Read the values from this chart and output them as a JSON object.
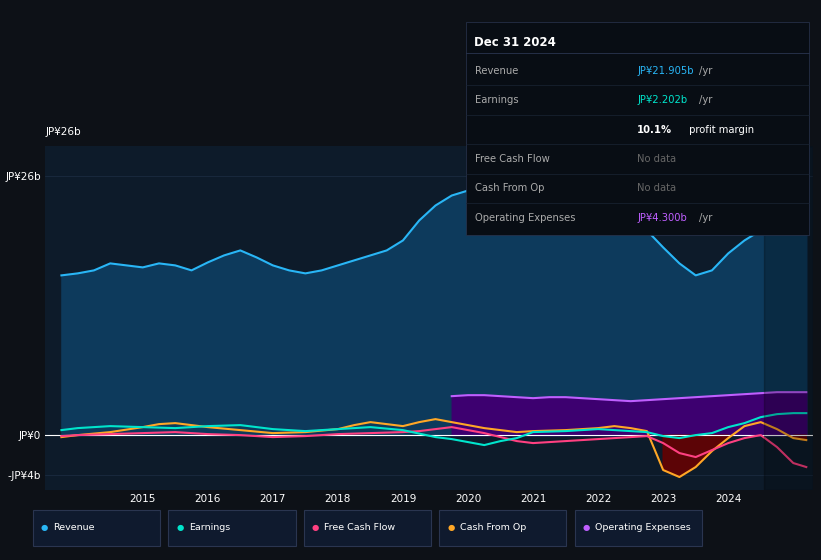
{
  "bg_color": "#0d1117",
  "plot_bg_color": "#0d1b2a",
  "grid_color": "#1e2f45",
  "title_date": "Dec 31 2024",
  "ytick_labels": [
    "JP¥26b",
    "JP¥0",
    "-JP¥4b"
  ],
  "ytick_values": [
    26,
    0,
    -4
  ],
  "ylim": [
    -5.5,
    29
  ],
  "xlim_start": 2013.5,
  "xlim_end": 2025.3,
  "xtick_labels": [
    "2015",
    "2016",
    "2017",
    "2018",
    "2019",
    "2020",
    "2021",
    "2022",
    "2023",
    "2024"
  ],
  "xtick_values": [
    2015,
    2016,
    2017,
    2018,
    2019,
    2020,
    2021,
    2022,
    2023,
    2024
  ],
  "revenue_color": "#29b6f6",
  "revenue_fill": "#0d3a5c",
  "earnings_color": "#00e5cc",
  "fcf_color": "#ff4081",
  "cashfromop_color": "#ffa726",
  "opex_color": "#bf5fff",
  "opex_fill": "#3d0070",
  "dark_red_fill": "#6b0000",
  "zero_line_color": "#ffffff",
  "shade_color": "#000000",
  "revenue_x": [
    2013.75,
    2014.0,
    2014.25,
    2014.5,
    2014.75,
    2015.0,
    2015.25,
    2015.5,
    2015.75,
    2016.0,
    2016.25,
    2016.5,
    2016.75,
    2017.0,
    2017.25,
    2017.5,
    2017.75,
    2018.0,
    2018.25,
    2018.5,
    2018.75,
    2019.0,
    2019.25,
    2019.5,
    2019.75,
    2020.0,
    2020.25,
    2020.5,
    2020.75,
    2021.0,
    2021.25,
    2021.5,
    2021.75,
    2022.0,
    2022.25,
    2022.5,
    2022.75,
    2023.0,
    2023.25,
    2023.5,
    2023.75,
    2024.0,
    2024.25,
    2024.5,
    2024.75,
    2025.0,
    2025.2
  ],
  "revenue_y": [
    16.0,
    16.2,
    16.5,
    17.2,
    17.0,
    16.8,
    17.2,
    17.0,
    16.5,
    17.3,
    18.0,
    18.5,
    17.8,
    17.0,
    16.5,
    16.2,
    16.5,
    17.0,
    17.5,
    18.0,
    18.5,
    19.5,
    21.5,
    23.0,
    24.0,
    24.5,
    24.8,
    24.2,
    23.8,
    24.5,
    24.8,
    25.2,
    24.8,
    25.0,
    24.8,
    22.5,
    20.5,
    18.8,
    17.2,
    16.0,
    16.5,
    18.2,
    19.5,
    20.5,
    21.0,
    21.5,
    21.9
  ],
  "earnings_x": [
    2013.75,
    2014.0,
    2014.5,
    2015.0,
    2015.5,
    2016.0,
    2016.5,
    2017.0,
    2017.5,
    2018.0,
    2018.5,
    2019.0,
    2019.5,
    2019.75,
    2020.0,
    2020.25,
    2020.5,
    2020.75,
    2021.0,
    2021.5,
    2022.0,
    2022.25,
    2022.5,
    2022.75,
    2023.0,
    2023.25,
    2023.5,
    2023.75,
    2024.0,
    2024.25,
    2024.5,
    2024.75,
    2025.0,
    2025.2
  ],
  "earnings_y": [
    0.5,
    0.7,
    0.9,
    0.8,
    0.7,
    0.9,
    1.0,
    0.6,
    0.4,
    0.6,
    0.8,
    0.5,
    -0.2,
    -0.4,
    -0.7,
    -1.0,
    -0.6,
    -0.3,
    0.3,
    0.4,
    0.6,
    0.5,
    0.4,
    0.3,
    -0.1,
    -0.3,
    0.0,
    0.2,
    0.8,
    1.2,
    1.8,
    2.1,
    2.2,
    2.2
  ],
  "fcf_x": [
    2013.75,
    2014.0,
    2014.5,
    2015.0,
    2015.5,
    2016.0,
    2016.5,
    2017.0,
    2017.5,
    2018.0,
    2018.5,
    2019.0,
    2019.25,
    2019.5,
    2019.75,
    2020.0,
    2020.25,
    2020.5,
    2020.75,
    2021.0,
    2021.5,
    2022.0,
    2022.25,
    2022.5,
    2022.75,
    2023.0,
    2023.25,
    2023.5,
    2023.75,
    2024.0,
    2024.25,
    2024.5,
    2024.75,
    2025.0,
    2025.2
  ],
  "fcf_y": [
    -0.1,
    0.0,
    0.1,
    0.2,
    0.3,
    0.1,
    0.0,
    -0.2,
    -0.1,
    0.1,
    0.2,
    0.3,
    0.4,
    0.6,
    0.8,
    0.5,
    0.2,
    -0.2,
    -0.6,
    -0.8,
    -0.6,
    -0.4,
    -0.3,
    -0.2,
    -0.1,
    -0.8,
    -1.8,
    -2.2,
    -1.5,
    -0.8,
    -0.3,
    0.0,
    -1.2,
    -2.8,
    -3.2
  ],
  "cfop_x": [
    2013.75,
    2014.0,
    2014.5,
    2015.0,
    2015.25,
    2015.5,
    2015.75,
    2016.0,
    2016.5,
    2017.0,
    2017.5,
    2018.0,
    2018.25,
    2018.5,
    2018.75,
    2019.0,
    2019.25,
    2019.5,
    2019.75,
    2020.0,
    2020.25,
    2020.5,
    2020.75,
    2021.0,
    2021.5,
    2022.0,
    2022.25,
    2022.5,
    2022.75,
    2023.0,
    2023.25,
    2023.5,
    2023.75,
    2024.0,
    2024.25,
    2024.5,
    2024.75,
    2025.0,
    2025.2
  ],
  "cfop_y": [
    -0.2,
    0.0,
    0.3,
    0.8,
    1.1,
    1.2,
    1.0,
    0.8,
    0.5,
    0.2,
    0.3,
    0.6,
    1.0,
    1.3,
    1.1,
    0.9,
    1.3,
    1.6,
    1.3,
    1.0,
    0.7,
    0.5,
    0.3,
    0.4,
    0.5,
    0.7,
    0.9,
    0.7,
    0.4,
    -3.5,
    -4.2,
    -3.2,
    -1.6,
    -0.3,
    0.9,
    1.3,
    0.6,
    -0.3,
    -0.5
  ],
  "opex_x": [
    2019.75,
    2020.0,
    2020.25,
    2020.5,
    2020.75,
    2021.0,
    2021.25,
    2021.5,
    2021.75,
    2022.0,
    2022.25,
    2022.5,
    2022.75,
    2023.0,
    2023.25,
    2023.5,
    2023.75,
    2024.0,
    2024.25,
    2024.5,
    2024.75,
    2025.0,
    2025.2
  ],
  "opex_y": [
    3.9,
    4.0,
    4.0,
    3.9,
    3.8,
    3.7,
    3.8,
    3.8,
    3.7,
    3.6,
    3.5,
    3.4,
    3.5,
    3.6,
    3.7,
    3.8,
    3.9,
    4.0,
    4.1,
    4.2,
    4.3,
    4.3,
    4.3
  ],
  "legend_items": [
    {
      "label": "Revenue",
      "color": "#29b6f6"
    },
    {
      "label": "Earnings",
      "color": "#00e5cc"
    },
    {
      "label": "Free Cash Flow",
      "color": "#ff4081"
    },
    {
      "label": "Cash From Op",
      "color": "#ffa726"
    },
    {
      "label": "Operating Expenses",
      "color": "#bf5fff"
    }
  ],
  "info_revenue_color": "#29b6f6",
  "info_earnings_color": "#00e5cc",
  "info_opex_color": "#bf5fff",
  "info_nodata_color": "#666666"
}
